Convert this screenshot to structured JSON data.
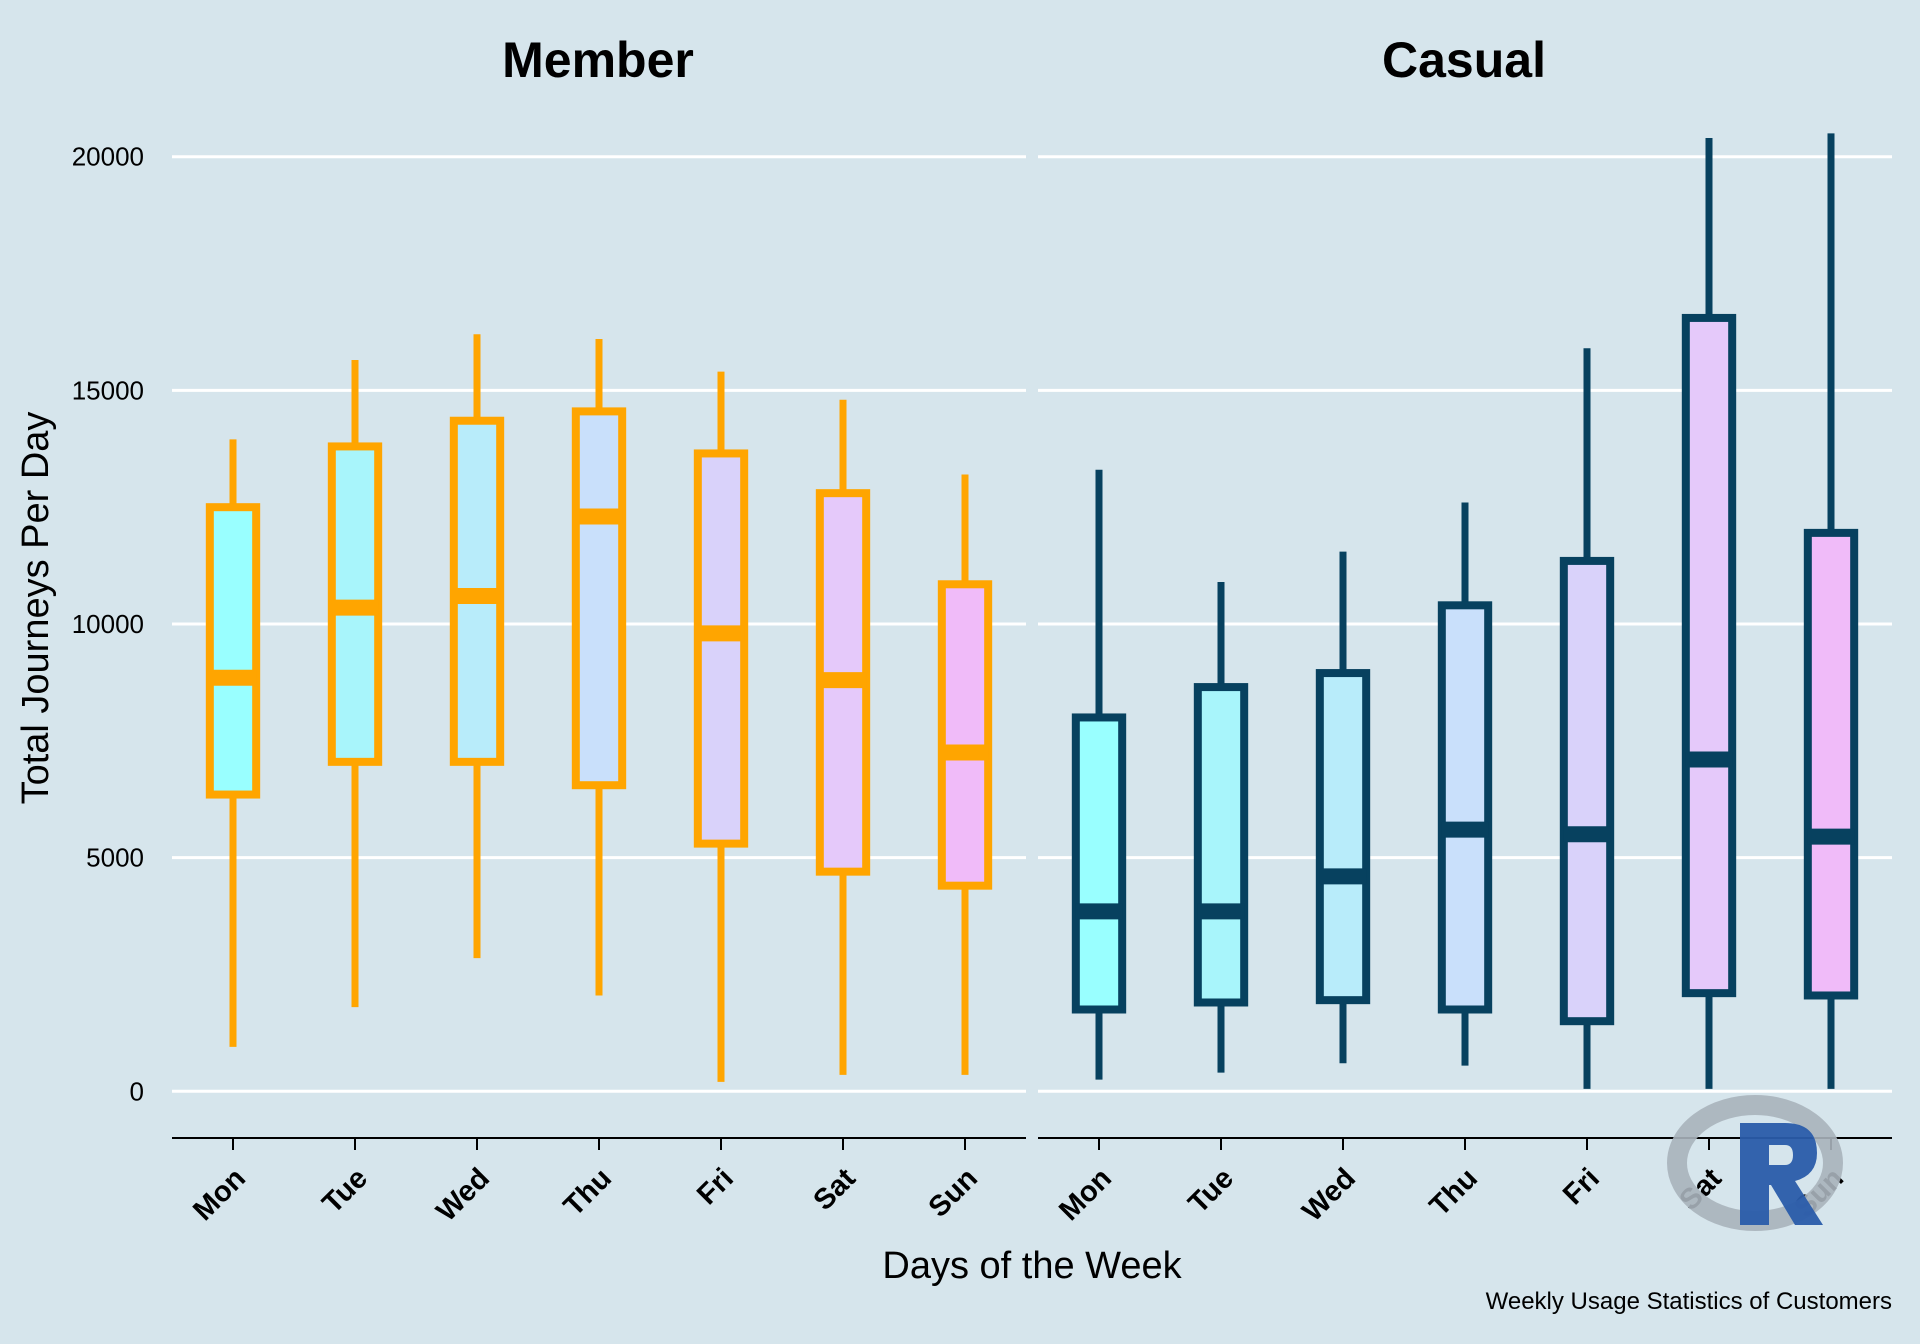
{
  "chart_data": {
    "type": "boxplot",
    "ylabel": "Total Journeys Per Day",
    "xlabel": "Days of the Week",
    "caption": "Weekly Usage Statistics of Customers",
    "ylim": [
      -1000,
      21000
    ],
    "yticks": [
      0,
      5000,
      10000,
      15000,
      20000
    ],
    "grid": "horizontal",
    "categories": [
      "Mon",
      "Tue",
      "Wed",
      "Thu",
      "Fri",
      "Sat",
      "Sun"
    ],
    "day_fill_colors": [
      "#99ffff",
      "#a8f5fb",
      "#b8ecfa",
      "#c9e0fb",
      "#d9d2fa",
      "#e5c9fa",
      "#f0bbf9"
    ],
    "panels": [
      {
        "title": "Member",
        "line_color": "#ffa500",
        "boxes": [
          {
            "day": "Mon",
            "min": 950,
            "q1": 6350,
            "median": 8850,
            "q3": 12500,
            "max": 13950
          },
          {
            "day": "Tue",
            "min": 1800,
            "q1": 7050,
            "median": 10350,
            "q3": 13800,
            "max": 15650
          },
          {
            "day": "Wed",
            "min": 2850,
            "q1": 7050,
            "median": 10600,
            "q3": 14350,
            "max": 16200
          },
          {
            "day": "Thu",
            "min": 2050,
            "q1": 6550,
            "median": 12300,
            "q3": 14550,
            "max": 16100
          },
          {
            "day": "Fri",
            "min": 200,
            "q1": 5300,
            "median": 9800,
            "q3": 13650,
            "max": 15400
          },
          {
            "day": "Sat",
            "min": 350,
            "q1": 4700,
            "median": 8800,
            "q3": 12800,
            "max": 14800
          },
          {
            "day": "Sun",
            "min": 350,
            "q1": 4400,
            "median": 7250,
            "q3": 10850,
            "max": 13200
          }
        ]
      },
      {
        "title": "Casual",
        "line_color": "#07415f",
        "boxes": [
          {
            "day": "Mon",
            "min": 250,
            "q1": 1750,
            "median": 3850,
            "q3": 8000,
            "max": 13300
          },
          {
            "day": "Tue",
            "min": 400,
            "q1": 1900,
            "median": 3850,
            "q3": 8650,
            "max": 10900
          },
          {
            "day": "Wed",
            "min": 600,
            "q1": 1950,
            "median": 4600,
            "q3": 8950,
            "max": 11550
          },
          {
            "day": "Thu",
            "min": 550,
            "q1": 1750,
            "median": 5600,
            "q3": 10400,
            "max": 12600
          },
          {
            "day": "Fri",
            "min": 50,
            "q1": 1500,
            "median": 5500,
            "q3": 11350,
            "max": 15900
          },
          {
            "day": "Sat",
            "min": 50,
            "q1": 2100,
            "median": 7100,
            "q3": 16550,
            "max": 20400
          },
          {
            "day": "Sun",
            "min": 50,
            "q1": 2050,
            "median": 5450,
            "q3": 11950,
            "max": 20500
          }
        ]
      }
    ]
  },
  "logo": {
    "letter": "R",
    "ring_color": "#a9b3bb",
    "letter_color": "#2a5caa"
  }
}
